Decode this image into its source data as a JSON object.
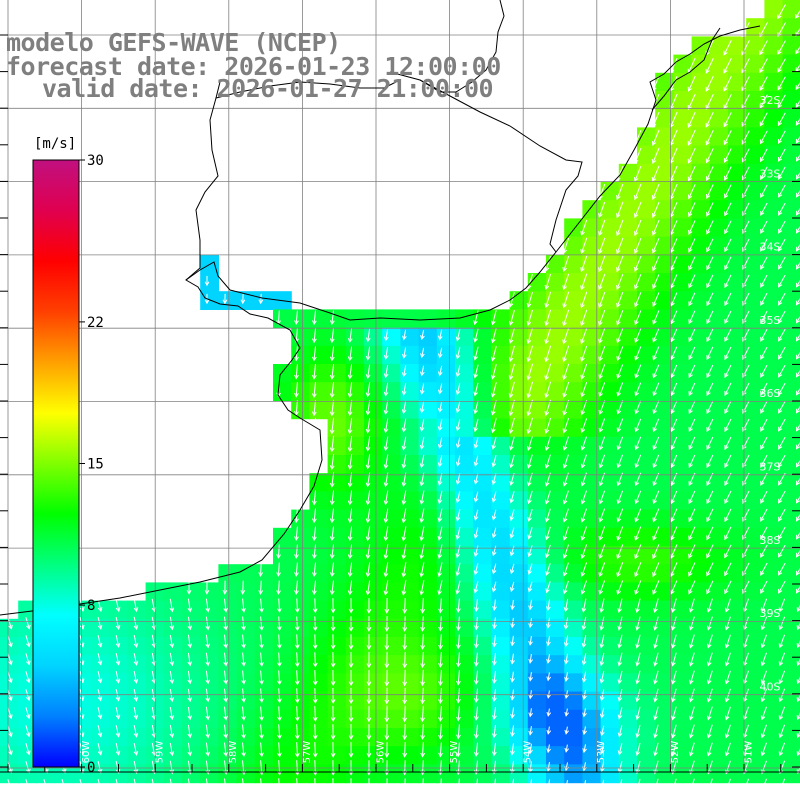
{
  "header": {
    "title": "modelo GEFS-WAVE (NCEP)",
    "forecast": "forecast date: 2026-01-23 12:00:00",
    "valid": "valid date: 2026-01-27 21:00:00"
  },
  "colorbar": {
    "unit": "[m/s]",
    "ticks": [
      {
        "value": 30,
        "label": "30"
      },
      {
        "value": 22,
        "label": "22"
      },
      {
        "value": 15,
        "label": "15"
      },
      {
        "value": 8,
        "label": "8"
      },
      {
        "value": 0,
        "label": "0"
      }
    ],
    "range": [
      0,
      30
    ],
    "stops": [
      "#0000ff",
      "#0080ff",
      "#00d4ff",
      "#00ffff",
      "#00ff80",
      "#00ff00",
      "#80ff00",
      "#ffff00",
      "#ffa000",
      "#ff4000",
      "#ff0000",
      "#e00050",
      "#c0107f"
    ]
  },
  "axes": {
    "lat_labels": [
      "32S",
      "33S",
      "34S",
      "35S",
      "36S",
      "37S",
      "38S",
      "39S",
      "40S"
    ],
    "lon_labels": [
      "60W",
      "59W",
      "58W",
      "57W",
      "56W",
      "55W",
      "54W",
      "53W",
      "52W",
      "51W"
    ]
  },
  "colors": {
    "grid": "#808080",
    "coast": "#000000",
    "land": "#ffffff",
    "arrow": "#ffffff",
    "title": "#7f7f7f"
  }
}
